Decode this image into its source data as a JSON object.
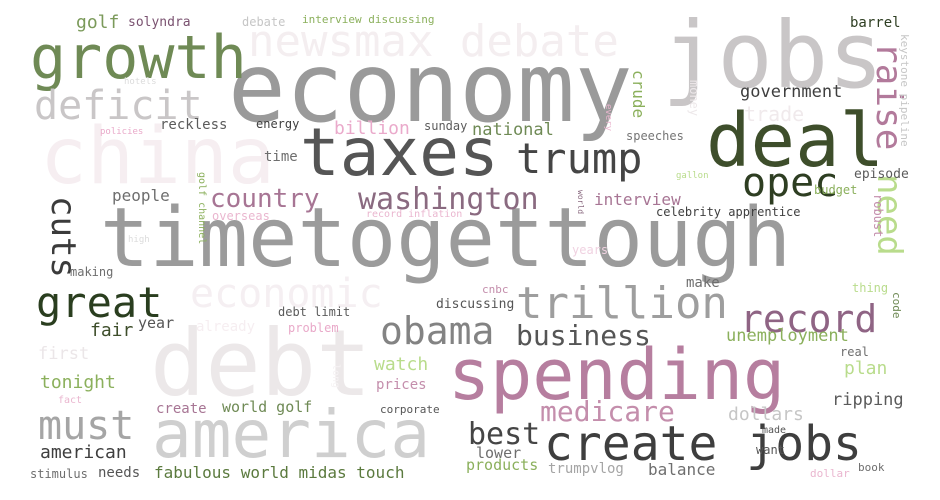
{
  "words": [
    {
      "id": "economy",
      "text": "economy",
      "color": "#9a9a9a"
    },
    {
      "id": "jobs_top",
      "text": "jobs",
      "color": "#c9c6c7"
    },
    {
      "id": "china",
      "text": "china",
      "color": "#f6eef1"
    },
    {
      "id": "growth",
      "text": "growth",
      "color": "#6f8a55"
    },
    {
      "id": "newsmax",
      "text": "newsmax debate",
      "color": "#f4eef0"
    },
    {
      "id": "deficit",
      "text": "deficit",
      "color": "#c9c6c7"
    },
    {
      "id": "deal",
      "text": "deal",
      "color": "#3e4e2b"
    },
    {
      "id": "taxes",
      "text": "taxes",
      "color": "#555555"
    },
    {
      "id": "trump",
      "text": "trump",
      "color": "#454545"
    },
    {
      "id": "raise",
      "text": "raise",
      "color": "#b27a9b"
    },
    {
      "id": "opec",
      "text": "opec",
      "color": "#2e3e22"
    },
    {
      "id": "need",
      "text": "need",
      "color": "#b9dc8c"
    },
    {
      "id": "timetogettough",
      "text": "timetogettough",
      "color": "#9b9b9b"
    },
    {
      "id": "country",
      "text": "country",
      "color": "#a77594"
    },
    {
      "id": "washington",
      "text": "washington",
      "color": "#8a6a80"
    },
    {
      "id": "cuts",
      "text": "cuts",
      "color": "#3b3b3b"
    },
    {
      "id": "great",
      "text": "great",
      "color": "#2a3e1f"
    },
    {
      "id": "economic",
      "text": "economic",
      "color": "#f5eff2"
    },
    {
      "id": "trillion",
      "text": "trillion",
      "color": "#9e9e9e"
    },
    {
      "id": "record",
      "text": "record",
      "color": "#8f6484"
    },
    {
      "id": "obama",
      "text": "obama",
      "color": "#838383"
    },
    {
      "id": "business",
      "text": "business",
      "color": "#555555"
    },
    {
      "id": "debt",
      "text": "debt",
      "color": "#ece8e9"
    },
    {
      "id": "spending",
      "text": "spending",
      "color": "#b67e9f"
    },
    {
      "id": "america",
      "text": "america",
      "color": "#cfcfcf"
    },
    {
      "id": "must",
      "text": "must",
      "color": "#a5a5a5"
    },
    {
      "id": "medicare",
      "text": "medicare",
      "color": "#c48eac"
    },
    {
      "id": "create_jobs",
      "text": "create jobs",
      "color": "#3e3e3e"
    },
    {
      "id": "best",
      "text": "best",
      "color": "#454545"
    },
    {
      "id": "golf_top",
      "text": "golf",
      "color": "#7b9a5a"
    },
    {
      "id": "solyndra",
      "text": "solyndra",
      "color": "#7a5270"
    },
    {
      "id": "debate_small",
      "text": "debate",
      "color": "#c6c6c6"
    },
    {
      "id": "interview_discussing",
      "text": "interview discussing",
      "color": "#8bb05c"
    },
    {
      "id": "barrel",
      "text": "barrel",
      "color": "#2e3e22"
    },
    {
      "id": "keystone",
      "text": "keystone pipeline",
      "color": "#c6c6c6"
    },
    {
      "id": "hotels",
      "text": "hotels",
      "color": "#dcdcdc"
    },
    {
      "id": "government",
      "text": "government",
      "color": "#3e3e3e"
    },
    {
      "id": "trade",
      "text": "trade",
      "color": "#f0eaec"
    },
    {
      "id": "money",
      "text": "money",
      "color": "#ede8ea"
    },
    {
      "id": "crude",
      "text": "crude",
      "color": "#8bb05c"
    },
    {
      "id": "every",
      "text": "every",
      "color": "#eab6cf"
    },
    {
      "id": "policies",
      "text": "policies",
      "color": "#e9a9c9"
    },
    {
      "id": "reckless",
      "text": "reckless",
      "color": "#5b5b5b"
    },
    {
      "id": "energy",
      "text": "energy",
      "color": "#3e3e3e"
    },
    {
      "id": "billion",
      "text": "billion",
      "color": "#eaaacb"
    },
    {
      "id": "sunday",
      "text": "sunday",
      "color": "#5b5b5b"
    },
    {
      "id": "national",
      "text": "national",
      "color": "#6f8a55"
    },
    {
      "id": "speeches",
      "text": "speeches",
      "color": "#757575"
    },
    {
      "id": "time",
      "text": "time",
      "color": "#6e6e6e"
    },
    {
      "id": "episode",
      "text": "episode",
      "color": "#5b5b5b"
    },
    {
      "id": "gallon",
      "text": "gallon",
      "color": "#b9dc8c"
    },
    {
      "id": "budget",
      "text": "budget",
      "color": "#8bb05c"
    },
    {
      "id": "people",
      "text": "people",
      "color": "#6e6e6e"
    },
    {
      "id": "golf_channel",
      "text": "golf channel",
      "color": "#8bb05c"
    },
    {
      "id": "world_small",
      "text": "world",
      "color": "#8a6a80"
    },
    {
      "id": "interview",
      "text": "interview",
      "color": "#a77594"
    },
    {
      "id": "celebrity",
      "text": "celebrity apprentice",
      "color": "#3e3e3e"
    },
    {
      "id": "overseas",
      "text": "overseas",
      "color": "#eab6cf"
    },
    {
      "id": "record_inflation",
      "text": "record inflation",
      "color": "#eab6cf"
    },
    {
      "id": "robust",
      "text": "robust",
      "color": "#c48eac"
    },
    {
      "id": "high",
      "text": "high",
      "color": "#dcdcdc"
    },
    {
      "id": "years",
      "text": "years",
      "color": "#f0d2e1"
    },
    {
      "id": "making",
      "text": "making",
      "color": "#6e6e6e"
    },
    {
      "id": "thing",
      "text": "thing",
      "color": "#b9dc8c"
    },
    {
      "id": "make",
      "text": "make",
      "color": "#6e6e6e"
    },
    {
      "id": "cnbc",
      "text": "cnbc",
      "color": "#c48eac"
    },
    {
      "id": "code",
      "text": "code",
      "color": "#6f8a55"
    },
    {
      "id": "debt_limit",
      "text": "debt limit",
      "color": "#5b5b5b"
    },
    {
      "id": "discussing",
      "text": "discussing",
      "color": "#555555"
    },
    {
      "id": "fair",
      "text": "fair",
      "color": "#3e4e2b"
    },
    {
      "id": "year",
      "text": "year",
      "color": "#555555"
    },
    {
      "id": "already",
      "text": "already",
      "color": "#f6eef1"
    },
    {
      "id": "problem",
      "text": "problem",
      "color": "#e9a9c9"
    },
    {
      "id": "unemployment",
      "text": "unemployment",
      "color": "#8bb05c"
    },
    {
      "id": "first",
      "text": "first",
      "color": "#ebe6e8"
    },
    {
      "id": "real",
      "text": "real",
      "color": "#6e6e6e"
    },
    {
      "id": "watch",
      "text": "watch",
      "color": "#b9dc8c"
    },
    {
      "id": "plan",
      "text": "plan",
      "color": "#b9dc8c"
    },
    {
      "id": "tonight",
      "text": "tonight",
      "color": "#8bb05c"
    },
    {
      "id": "prices",
      "text": "prices",
      "color": "#c48eac"
    },
    {
      "id": "ripping",
      "text": "ripping",
      "color": "#5b5b5b"
    },
    {
      "id": "fact",
      "text": "fact",
      "color": "#eab6cf"
    },
    {
      "id": "lower",
      "text": "lower",
      "color": "#6e6e6e"
    },
    {
      "id": "create_small",
      "text": "create",
      "color": "#a77594"
    },
    {
      "id": "world_golf",
      "text": "world golf",
      "color": "#6f8a55"
    },
    {
      "id": "corporate",
      "text": "corporate",
      "color": "#555555"
    },
    {
      "id": "dollars",
      "text": "dollars",
      "color": "#c6c6c6"
    },
    {
      "id": "made",
      "text": "made",
      "color": "#555555"
    },
    {
      "id": "american",
      "text": "american",
      "color": "#3e3e3e"
    },
    {
      "id": "want",
      "text": "want",
      "color": "#555555"
    },
    {
      "id": "stimulus",
      "text": "stimulus",
      "color": "#6e6e6e"
    },
    {
      "id": "needs",
      "text": "needs",
      "color": "#555555"
    },
    {
      "id": "fabulous",
      "text": "fabulous world midas touch",
      "color": "#5b7a3e"
    },
    {
      "id": "products",
      "text": "products",
      "color": "#8bb05c"
    },
    {
      "id": "trumpvlog",
      "text": "trumpvlog",
      "color": "#a5a5a5"
    },
    {
      "id": "balance",
      "text": "balance",
      "color": "#6e6e6e"
    },
    {
      "id": "dollar",
      "text": "dollar",
      "color": "#eab6cf"
    },
    {
      "id": "book",
      "text": "book",
      "color": "#6e6e6e"
    },
    {
      "id": "long",
      "text": "long",
      "color": "#f6f3f4"
    }
  ]
}
